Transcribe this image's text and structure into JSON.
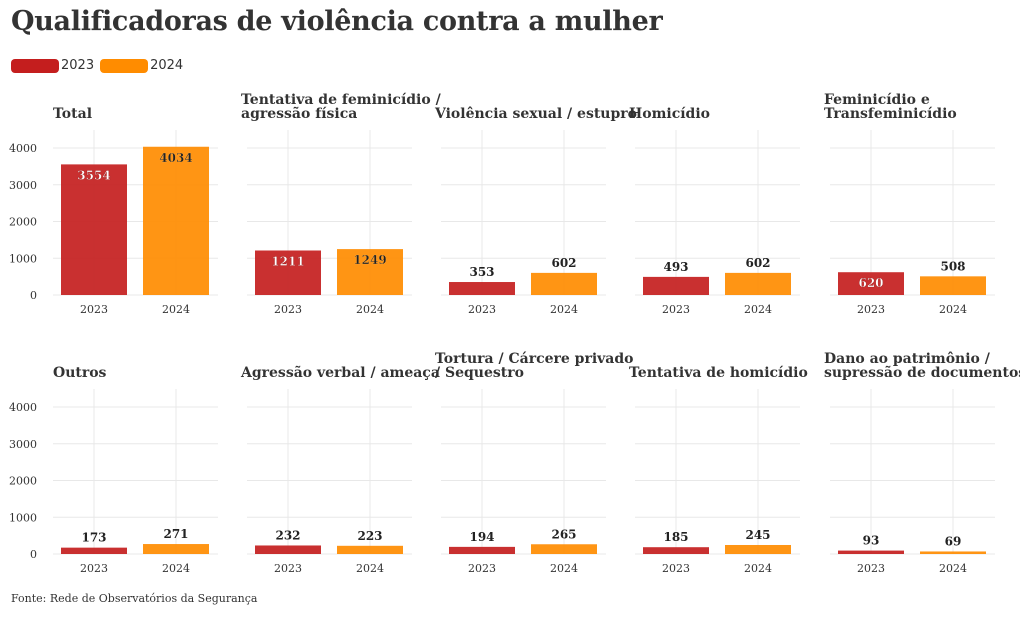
{
  "title": "Qualificadoras de violência contra a mulher",
  "legend": [
    {
      "label": "2023",
      "color": "#c41e1e"
    },
    {
      "label": "2024",
      "color": "#ff8c00"
    }
  ],
  "source": "Fonte: Rede de Observatórios da Segurança",
  "colors": {
    "y2023": "#c41e1e",
    "y2024": "#ff8c00",
    "grid": "#e8e8e8",
    "text": "#333333"
  },
  "chart_data": [
    {
      "type": "bar",
      "title": [
        "Total"
      ],
      "categories": [
        "2023",
        "2024"
      ],
      "values": [
        3554,
        4034
      ],
      "yticks": [
        "0",
        "1000",
        "2000",
        "3000",
        "4000"
      ],
      "ylim": [
        0,
        4400
      ],
      "label_inside": [
        true,
        true
      ]
    },
    {
      "type": "bar",
      "title": [
        "Tentativa de feminicídio /",
        "agressão física"
      ],
      "categories": [
        "2023",
        "2024"
      ],
      "values": [
        1211,
        1249
      ],
      "ylim": [
        0,
        4400
      ],
      "label_inside": [
        true,
        true
      ]
    },
    {
      "type": "bar",
      "title": [
        "Violência sexual / estupro"
      ],
      "categories": [
        "2023",
        "2024"
      ],
      "values": [
        353,
        602
      ],
      "ylim": [
        0,
        4400
      ],
      "label_inside": [
        false,
        false
      ]
    },
    {
      "type": "bar",
      "title": [
        "Homicídio"
      ],
      "categories": [
        "2023",
        "2024"
      ],
      "values": [
        493,
        602
      ],
      "ylim": [
        0,
        4400
      ],
      "label_inside": [
        false,
        false
      ]
    },
    {
      "type": "bar",
      "title": [
        "Feminicídio e",
        "Transfeminicídio"
      ],
      "categories": [
        "2023",
        "2024"
      ],
      "values": [
        620,
        508
      ],
      "ylim": [
        0,
        4400
      ],
      "label_inside": [
        true,
        false
      ]
    },
    {
      "type": "bar",
      "title": [
        "Outros"
      ],
      "categories": [
        "2023",
        "2024"
      ],
      "values": [
        173,
        271
      ],
      "yticks": [
        "0",
        "1000",
        "2000",
        "3000",
        "4000"
      ],
      "ylim": [
        0,
        4400
      ],
      "label_inside": [
        false,
        false
      ]
    },
    {
      "type": "bar",
      "title": [
        "Agressão verbal / ameaça"
      ],
      "categories": [
        "2023",
        "2024"
      ],
      "values": [
        232,
        223
      ],
      "ylim": [
        0,
        4400
      ],
      "label_inside": [
        false,
        false
      ]
    },
    {
      "type": "bar",
      "title": [
        "Tortura / Cárcere privado",
        "/ Sequestro"
      ],
      "categories": [
        "2023",
        "2024"
      ],
      "values": [
        194,
        265
      ],
      "ylim": [
        0,
        4400
      ],
      "label_inside": [
        false,
        false
      ]
    },
    {
      "type": "bar",
      "title": [
        "Tentativa de homicídio"
      ],
      "categories": [
        "2023",
        "2024"
      ],
      "values": [
        185,
        245
      ],
      "ylim": [
        0,
        4400
      ],
      "label_inside": [
        false,
        false
      ]
    },
    {
      "type": "bar",
      "title": [
        "Dano ao patrimônio /",
        "supressão de documentos"
      ],
      "categories": [
        "2023",
        "2024"
      ],
      "values": [
        93,
        69
      ],
      "ylim": [
        0,
        4400
      ],
      "label_inside": [
        false,
        false
      ]
    }
  ]
}
